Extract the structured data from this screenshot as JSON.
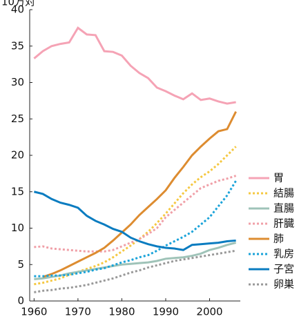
{
  "chart_data": {
    "type": "line",
    "title": "10万対",
    "x": [
      1960,
      1962,
      1964,
      1966,
      1968,
      1970,
      1972,
      1974,
      1976,
      1978,
      1980,
      1982,
      1984,
      1986,
      1988,
      1990,
      1992,
      1994,
      1996,
      1998,
      2000,
      2002,
      2004,
      2006
    ],
    "xlim": [
      1959,
      2007
    ],
    "xticks": [
      1960,
      1970,
      1980,
      1990,
      2000
    ],
    "ylim": [
      0,
      40
    ],
    "yticks": [
      0,
      5,
      10,
      15,
      20,
      25,
      30,
      35,
      40
    ],
    "legend": "right",
    "series": [
      {
        "name": "胃",
        "color": "#f5a3b5",
        "style": "solid",
        "values": [
          33.3,
          34.3,
          35,
          35.3,
          35.5,
          37.5,
          36.6,
          36.5,
          34.3,
          34.2,
          33.7,
          32.3,
          31.3,
          30.6,
          29.3,
          28.8,
          28.2,
          27.7,
          28.5,
          27.6,
          27.8,
          27.4,
          27.1,
          27.3
        ]
      },
      {
        "name": "結腸",
        "color": "#f5c842",
        "style": "dotted",
        "values": [
          2.3,
          2.5,
          2.8,
          3.1,
          3.6,
          4.0,
          4.4,
          4.8,
          5.3,
          6.0,
          6.8,
          7.6,
          8.5,
          9.5,
          10.7,
          12.0,
          13.4,
          14.8,
          16.0,
          17.0,
          17.8,
          18.8,
          20.0,
          21.2
        ]
      },
      {
        "name": "直腸",
        "color": "#9fc3b8",
        "style": "solid",
        "values": [
          3.0,
          3.1,
          3.3,
          3.5,
          3.8,
          4.0,
          4.2,
          4.4,
          4.6,
          4.8,
          5.0,
          5.1,
          5.2,
          5.3,
          5.5,
          5.8,
          5.9,
          6.0,
          6.2,
          6.5,
          7.0,
          7.3,
          7.7,
          8.0
        ]
      },
      {
        "name": "肝臓",
        "color": "#f0a0a8",
        "style": "dotted",
        "values": [
          7.4,
          7.5,
          7.2,
          7.1,
          7.0,
          6.9,
          6.8,
          6.8,
          6.8,
          7.0,
          7.5,
          8.0,
          8.5,
          9.2,
          10.0,
          11.5,
          12.5,
          13.5,
          14.5,
          15.5,
          16.0,
          16.5,
          16.8,
          17.2
        ]
      },
      {
        "name": "肺",
        "color": "#dd8c30",
        "style": "solid",
        "values": [
          null,
          3.3,
          3.7,
          4.2,
          4.8,
          5.4,
          6.0,
          6.6,
          7.3,
          8.3,
          9.4,
          10.5,
          11.8,
          12.9,
          14.0,
          15.2,
          16.9,
          18.4,
          20.0,
          21.2,
          22.3,
          23.3,
          23.6,
          26.0
        ]
      },
      {
        "name": "乳房",
        "color": "#1aa3d9",
        "style": "dotted",
        "values": [
          3.4,
          3.4,
          3.5,
          3.5,
          3.6,
          3.8,
          4.0,
          4.3,
          4.5,
          4.9,
          5.3,
          5.6,
          6.0,
          6.3,
          6.9,
          7.6,
          8.2,
          8.8,
          9.5,
          10.5,
          11.5,
          13.0,
          14.5,
          16.5
        ]
      },
      {
        "name": "子宮",
        "color": "#0a7cc0",
        "style": "solid",
        "values": [
          15,
          14.7,
          14,
          13.5,
          13.2,
          12.8,
          11.7,
          11,
          10.5,
          9.9,
          9.5,
          8.7,
          8.2,
          7.8,
          7.5,
          7.3,
          7.2,
          7.0,
          7.7,
          7.8,
          7.9,
          8.0,
          8.2,
          8.3
        ]
      },
      {
        "name": "卵巣",
        "color": "#999999",
        "style": "dotted",
        "values": [
          1.2,
          1.4,
          1.5,
          1.7,
          1.8,
          2.0,
          2.2,
          2.5,
          2.8,
          3.1,
          3.5,
          3.9,
          4.2,
          4.6,
          4.9,
          5.2,
          5.5,
          5.7,
          5.9,
          6.1,
          6.3,
          6.5,
          6.7,
          6.9
        ]
      }
    ]
  }
}
